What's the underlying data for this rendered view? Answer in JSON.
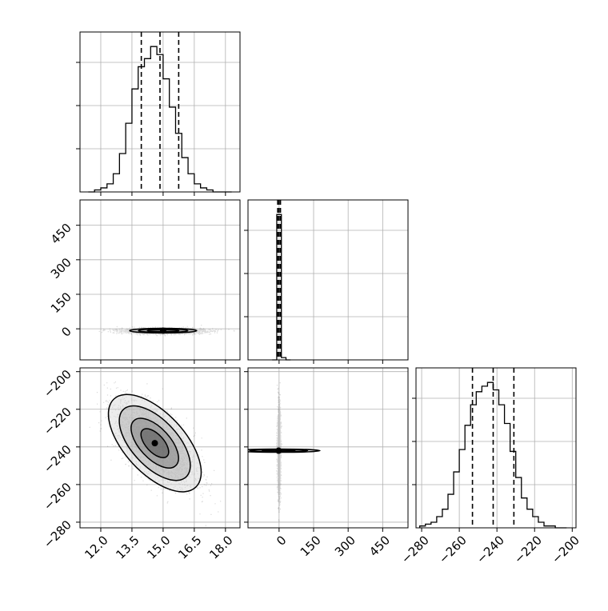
{
  "chart_data": {
    "type": "corner",
    "grid": true,
    "dashed_quantile_lines": true,
    "colors": {
      "line": "#000000",
      "grid": "#b0b0b0",
      "point": "#333333"
    },
    "x_ticks": [
      {
        "values": [
          12.0,
          13.5,
          15.0,
          16.5,
          18.0
        ],
        "labels": [
          "12.0",
          "13.5",
          "15.0",
          "16.5",
          "18.0"
        ]
      },
      {
        "values": [
          0,
          150,
          300,
          450
        ],
        "labels": [
          "0",
          "150",
          "300",
          "450"
        ]
      },
      {
        "values": [
          -280,
          -260,
          -240,
          -220,
          -200
        ],
        "labels": [
          "−280",
          "−260",
          "−240",
          "−220",
          "−200"
        ]
      }
    ],
    "y_ticks": [
      {
        "values": [
          0,
          150,
          300,
          450
        ],
        "labels": [
          "0",
          "150",
          "300",
          "450"
        ]
      },
      {
        "values": [
          -280,
          -260,
          -240,
          -220,
          -200
        ],
        "labels": [
          "−280",
          "−260",
          "−240",
          "−220",
          "−200"
        ]
      }
    ],
    "ranges": [
      [
        11.0,
        18.7
      ],
      [
        -135,
        560
      ],
      [
        -283,
        -198
      ]
    ],
    "histograms": [
      {
        "param": 1,
        "bin_edges": [
          11.4,
          11.7,
          12.0,
          12.3,
          12.6,
          12.9,
          13.2,
          13.5,
          13.8,
          14.1,
          14.4,
          14.7,
          15.0,
          15.3,
          15.6,
          15.9,
          16.2,
          16.5,
          16.8,
          17.1,
          17.4,
          17.7,
          18.0,
          18.3
        ],
        "counts": [
          0,
          1,
          2,
          4,
          9,
          19,
          34,
          51,
          62,
          66,
          72,
          68,
          56,
          42,
          29,
          17,
          9,
          4,
          2,
          1,
          0,
          0,
          0
        ],
        "quantiles": [
          13.95,
          14.85,
          15.75
        ]
      },
      {
        "param": 2,
        "bin_edges": [
          -30,
          -10,
          10,
          30,
          50
        ],
        "counts": [
          0,
          500,
          8,
          0
        ],
        "quantiles": [
          -6,
          0,
          6
        ]
      },
      {
        "param": 3,
        "bin_edges": [
          -281,
          -278,
          -275,
          -272,
          -269,
          -266,
          -263,
          -260,
          -257,
          -254,
          -251,
          -248,
          -245,
          -242,
          -239,
          -236,
          -233,
          -230,
          -227,
          -224,
          -221,
          -218,
          -215,
          -212,
          -209,
          -206,
          -203
        ],
        "counts": [
          1,
          2,
          3,
          6,
          10,
          18,
          30,
          42,
          55,
          66,
          73,
          76,
          78,
          74,
          66,
          56,
          41,
          27,
          16,
          10,
          6,
          3,
          1,
          1,
          0,
          0
        ],
        "quantiles": [
          -253,
          -242,
          -231
        ]
      }
    ],
    "joint": [
      {
        "x": 1,
        "y": 2,
        "mean": [
          15.0,
          -8
        ],
        "sd": [
          0.95,
          6
        ],
        "rho": 0.0,
        "contour_scale": [
          0.8,
          1.25,
          1.7
        ]
      },
      {
        "x": 1,
        "y": 3,
        "mean": [
          14.6,
          -238
        ],
        "sd": [
          0.95,
          11
        ],
        "rho": -0.6,
        "contour_scale": [
          0.7,
          1.2,
          1.8,
          2.35
        ]
      },
      {
        "x": 2,
        "y": 3,
        "mean": [
          -2,
          -242
        ],
        "sd": [
          3.5,
          11
        ],
        "rho": 0.0,
        "contour_scale": [
          0.8,
          1.4,
          2.0
        ]
      }
    ]
  }
}
